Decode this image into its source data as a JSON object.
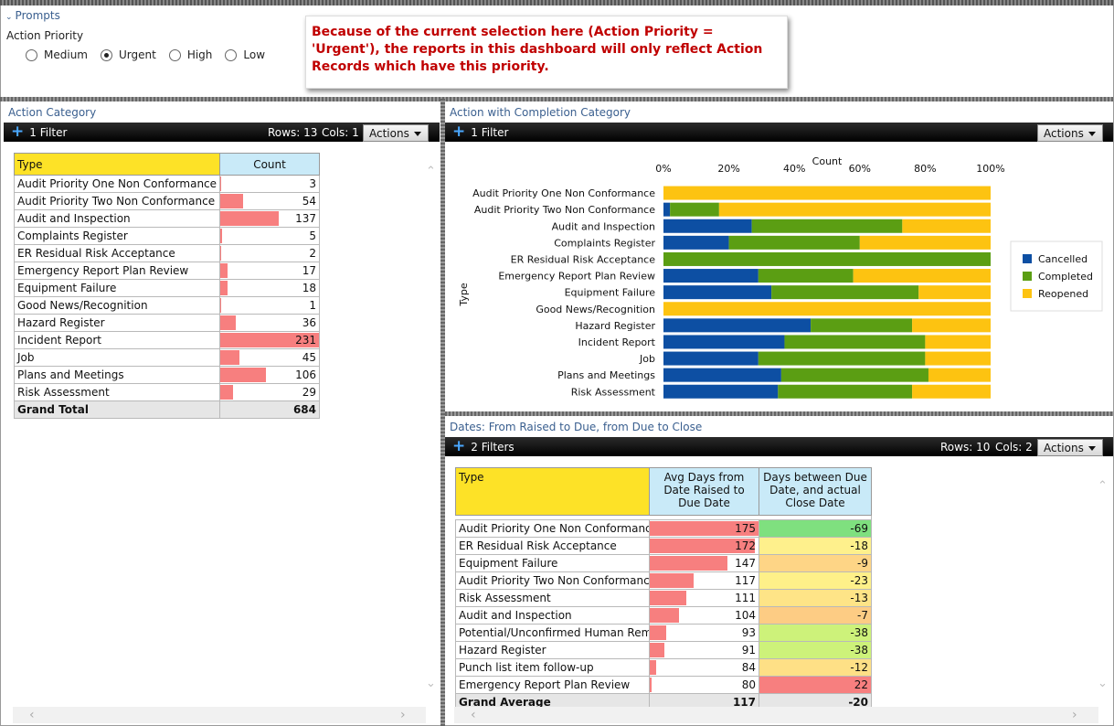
{
  "prompts": {
    "title": "Prompts",
    "field_label": "Action Priority",
    "options": [
      {
        "label": "Medium",
        "selected": false
      },
      {
        "label": "Urgent",
        "selected": true
      },
      {
        "label": "High",
        "selected": false
      },
      {
        "label": "Low",
        "selected": false
      }
    ]
  },
  "callout": {
    "text": "Because of the current selection here (Action Priority = 'Urgent'), the reports in this dashboard will only reflect Action Records which have this priority."
  },
  "action_category": {
    "title": "Action Category",
    "filter_label": "1 Filter",
    "rows_label": "Rows: 13",
    "cols_label": "Cols: 1",
    "actions_label": "Actions",
    "columns": [
      "Type",
      "Count"
    ],
    "rows": [
      {
        "type": "Audit Priority One Non Conformance",
        "count": 3
      },
      {
        "type": "Audit Priority Two Non Conformance",
        "count": 54
      },
      {
        "type": "Audit and Inspection",
        "count": 137
      },
      {
        "type": "Complaints Register",
        "count": 5
      },
      {
        "type": "ER Residual Risk Acceptance",
        "count": 2
      },
      {
        "type": "Emergency Report Plan Review",
        "count": 17
      },
      {
        "type": "Equipment Failure",
        "count": 18
      },
      {
        "type": "Good News/Recognition",
        "count": 1
      },
      {
        "type": "Hazard Register",
        "count": 36
      },
      {
        "type": "Incident Report",
        "count": 231
      },
      {
        "type": "Job",
        "count": 45
      },
      {
        "type": "Plans and Meetings",
        "count": 106
      },
      {
        "type": "Risk Assessment",
        "count": 29
      }
    ],
    "total_label": "Grand Total",
    "total_value": "684"
  },
  "completion": {
    "title": "Action with Completion Category",
    "filter_label": "1 Filter",
    "actions_label": "Actions"
  },
  "chart_data": {
    "type": "bar",
    "orientation": "horizontal",
    "stacked": "100%",
    "xlabel": "Count",
    "ylabel": "Type",
    "x_ticks": [
      "0%",
      "20%",
      "40%",
      "60%",
      "80%",
      "100%"
    ],
    "xlim": [
      0,
      100
    ],
    "legend_position": "right",
    "categories": [
      "Audit Priority One Non Conformance",
      "Audit Priority Two Non Conformance",
      "Audit and Inspection",
      "Complaints Register",
      "ER Residual Risk Acceptance",
      "Emergency Report Plan Review",
      "Equipment Failure",
      "Good News/Recognition",
      "Hazard Register",
      "Incident Report",
      "Job",
      "Plans and Meetings",
      "Risk Assessment"
    ],
    "series": [
      {
        "name": "Cancelled",
        "color": "#0d4fa3",
        "values": [
          0,
          2,
          27,
          20,
          0,
          29,
          33,
          0,
          45,
          37,
          29,
          36,
          35
        ]
      },
      {
        "name": "Completed",
        "color": "#5b9e13",
        "values": [
          0,
          15,
          46,
          40,
          100,
          29,
          45,
          0,
          31,
          43,
          51,
          45,
          41
        ]
      },
      {
        "name": "Reopened",
        "color": "#fdc311",
        "values": [
          100,
          83,
          27,
          40,
          0,
          42,
          22,
          100,
          24,
          20,
          20,
          19,
          24
        ]
      }
    ]
  },
  "dates": {
    "title": "Dates: From Raised to Due, from Due to Close",
    "filter_label": "2 Filters",
    "rows_label": "Rows: 10",
    "cols_label": "Cols: 2",
    "actions_label": "Actions",
    "col_type": "Type",
    "col_avg": "Avg Days from Date Raised to Due Date",
    "col_days": "Days between Due Date, and actual Close Date",
    "rows": [
      {
        "type": "Audit Priority One Non Conformance",
        "avg": 175,
        "days": -69,
        "days_color": "#7fe07f"
      },
      {
        "type": "ER Residual Risk Acceptance",
        "avg": 172,
        "days": -18,
        "days_color": "#fef08c"
      },
      {
        "type": "Equipment Failure",
        "avg": 147,
        "days": -9,
        "days_color": "#fed586"
      },
      {
        "type": "Audit Priority Two Non Conformance",
        "avg": 117,
        "days": -23,
        "days_color": "#fef089"
      },
      {
        "type": "Risk Assessment",
        "avg": 111,
        "days": -13,
        "days_color": "#fee487"
      },
      {
        "type": "Audit and Inspection",
        "avg": 104,
        "days": -7,
        "days_color": "#fdcc84"
      },
      {
        "type": "Potential/Unconfirmed Human Remains",
        "avg": 93,
        "days": -38,
        "days_color": "#cdf27a"
      },
      {
        "type": "Hazard Register",
        "avg": 91,
        "days": -38,
        "days_color": "#cdf27a"
      },
      {
        "type": "Punch list item follow-up",
        "avg": 84,
        "days": -12,
        "days_color": "#fee086"
      },
      {
        "type": "Emergency Report Plan Review",
        "avg": 80,
        "days": 22,
        "days_color": "#f77f7f"
      }
    ],
    "total_label": "Grand Average",
    "total_avg": "117",
    "total_days": "-20"
  },
  "colors": {
    "header_yellow": "#fde227",
    "header_blue": "#c9eaf8",
    "bar_red": "#f77f7f",
    "callout_red": "#c00000",
    "title_blue": "#3a5f8f"
  }
}
